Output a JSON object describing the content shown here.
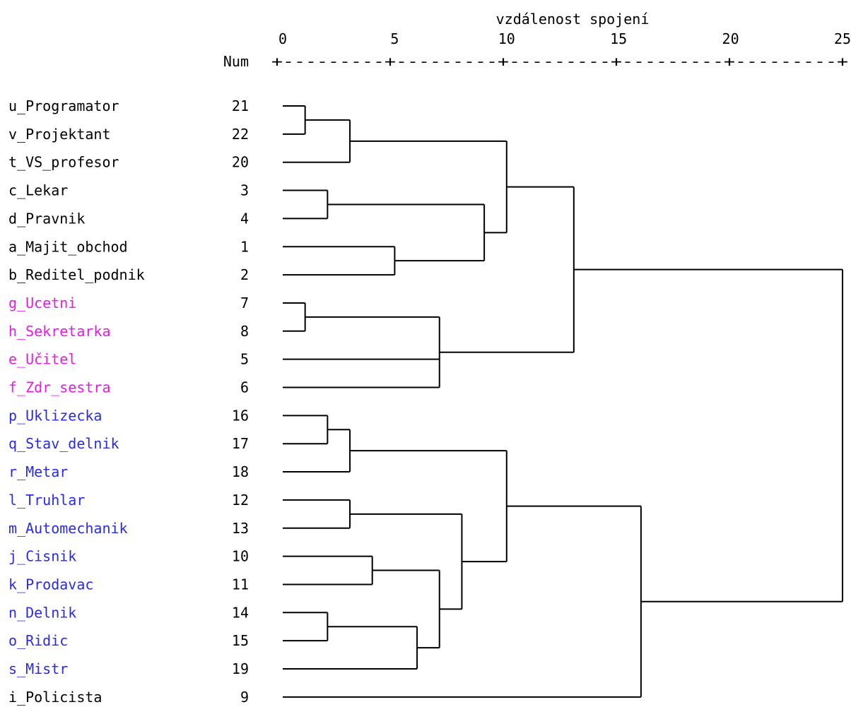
{
  "chart_data": {
    "type": "dendrogram",
    "title": "",
    "xlabel": "vzdálenost spojení",
    "num_label": "Num",
    "xlim": [
      0,
      25
    ],
    "ticks": [
      "0",
      "5",
      "10",
      "15",
      "20",
      "25"
    ],
    "tick_values": [
      0,
      5,
      10,
      15,
      20,
      25
    ],
    "scale_line": "+---------+---------+---------+---------+---------+",
    "colors": {
      "black": "#000000",
      "magenta": "#e619e6",
      "blue": "#2a2ae6"
    },
    "leaves": [
      {
        "label": "u_Programator",
        "num": "21",
        "color": "black"
      },
      {
        "label": "v_Projektant",
        "num": "22",
        "color": "black"
      },
      {
        "label": "t_VS_profesor",
        "num": "20",
        "color": "black"
      },
      {
        "label": "c_Lekar",
        "num": "3",
        "color": "black"
      },
      {
        "label": "d_Pravnik",
        "num": "4",
        "color": "black"
      },
      {
        "label": "a_Majit_obchod",
        "num": "1",
        "color": "black"
      },
      {
        "label": "b_Reditel_podnik",
        "num": "2",
        "color": "black"
      },
      {
        "label": "g_Ucetni",
        "num": "7",
        "color": "magenta"
      },
      {
        "label": "h_Sekretarka",
        "num": "8",
        "color": "magenta"
      },
      {
        "label": "e_Učitel",
        "num": "5",
        "color": "magenta"
      },
      {
        "label": "f_Zdr_sestra",
        "num": "6",
        "color": "magenta"
      },
      {
        "label": "p_Uklizecka",
        "num": "16",
        "color": "blue"
      },
      {
        "label": "q_Stav_delnik",
        "num": "17",
        "color": "blue"
      },
      {
        "label": "r_Metar",
        "num": "18",
        "color": "blue"
      },
      {
        "label": "l_Truhlar",
        "num": "12",
        "color": "blue"
      },
      {
        "label": "m_Automechanik",
        "num": "13",
        "color": "blue"
      },
      {
        "label": "j_Cisnik",
        "num": "10",
        "color": "blue"
      },
      {
        "label": "k_Prodavac",
        "num": "11",
        "color": "blue"
      },
      {
        "label": "n_Delnik",
        "num": "14",
        "color": "blue"
      },
      {
        "label": "o_Ridic",
        "num": "15",
        "color": "blue"
      },
      {
        "label": "s_Mistr",
        "num": "19",
        "color": "blue"
      },
      {
        "label": "i_Policista",
        "num": "9",
        "color": "black"
      }
    ],
    "merges": [
      {
        "id": "m1",
        "children": [
          "L0",
          "L1"
        ],
        "distance": 1.0
      },
      {
        "id": "m2",
        "children": [
          "m1",
          "L2"
        ],
        "distance": 3.0
      },
      {
        "id": "m3",
        "children": [
          "L3",
          "L4"
        ],
        "distance": 2.0
      },
      {
        "id": "m4",
        "children": [
          "L5",
          "L6"
        ],
        "distance": 5.0
      },
      {
        "id": "m5",
        "children": [
          "m3",
          "m4"
        ],
        "distance": 9.0
      },
      {
        "id": "m6",
        "children": [
          "m2",
          "m5"
        ],
        "distance": 10.0
      },
      {
        "id": "m7",
        "children": [
          "L7",
          "L8"
        ],
        "distance": 1.0
      },
      {
        "id": "m8",
        "children": [
          "m7",
          "L9",
          "L10"
        ],
        "distance": 7.0
      },
      {
        "id": "m9",
        "children": [
          "m6",
          "m8"
        ],
        "distance": 13.0
      },
      {
        "id": "m10",
        "children": [
          "L11",
          "L12"
        ],
        "distance": 2.0
      },
      {
        "id": "m11",
        "children": [
          "m10",
          "L13"
        ],
        "distance": 3.0
      },
      {
        "id": "m12",
        "children": [
          "L14",
          "L15"
        ],
        "distance": 3.0
      },
      {
        "id": "m13",
        "children": [
          "L16",
          "L17"
        ],
        "distance": 4.0
      },
      {
        "id": "m14",
        "children": [
          "L18",
          "L19"
        ],
        "distance": 2.0
      },
      {
        "id": "m15",
        "children": [
          "m14",
          "L20"
        ],
        "distance": 6.0
      },
      {
        "id": "m16",
        "children": [
          "m13",
          "m15"
        ],
        "distance": 7.0
      },
      {
        "id": "m17",
        "children": [
          "m12",
          "m16"
        ],
        "distance": 8.0
      },
      {
        "id": "m18",
        "children": [
          "m11",
          "m17"
        ],
        "distance": 10.0
      },
      {
        "id": "m19",
        "children": [
          "m18",
          "L21"
        ],
        "distance": 16.0
      },
      {
        "id": "m20",
        "children": [
          "m9",
          "m19"
        ],
        "distance": 25.0
      }
    ]
  }
}
